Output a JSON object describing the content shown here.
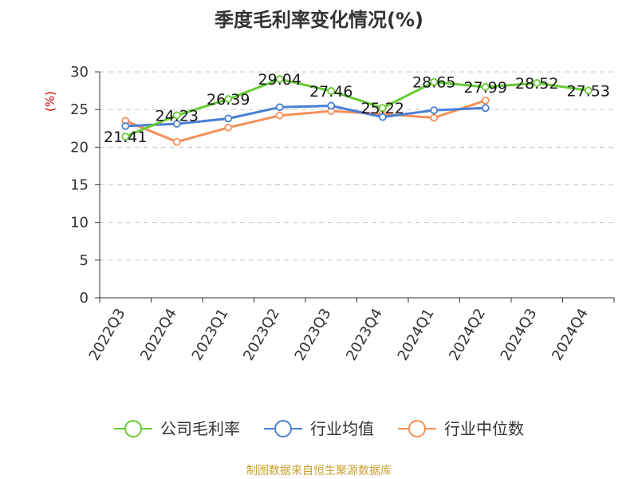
{
  "chart_data": {
    "type": "line",
    "title": "季度毛利率变化情况(%)",
    "xlabel": "",
    "ylabel": "(%)",
    "ylabel_color": "#cc0000",
    "ylim": [
      0,
      30
    ],
    "yticks": [
      0,
      5,
      10,
      15,
      20,
      25,
      30
    ],
    "grid": true,
    "legend_position": "bottom",
    "categories": [
      "2022Q3",
      "2022Q4",
      "2023Q1",
      "2023Q2",
      "2023Q3",
      "2023Q4",
      "2024Q1",
      "2024Q2",
      "2024Q3",
      "2024Q4"
    ],
    "series": [
      {
        "name": "公司毛利率",
        "color": "#66cc33",
        "values": [
          21.41,
          24.23,
          26.39,
          29.04,
          27.46,
          25.22,
          28.65,
          27.99,
          28.52,
          27.53
        ],
        "labels": [
          "21.41",
          "24.23",
          "26.39",
          "29.04",
          "27.46",
          "25.22",
          "28.65",
          "27.99",
          "28.52",
          "27.53"
        ]
      },
      {
        "name": "行业均值",
        "color": "#4a7fd4",
        "values": [
          22.8,
          23.1,
          23.8,
          25.3,
          25.5,
          24.0,
          24.9,
          25.2,
          null,
          null
        ]
      },
      {
        "name": "行业中位数",
        "color": "#f4905a",
        "values": [
          23.5,
          20.7,
          22.6,
          24.2,
          24.8,
          24.4,
          23.9,
          26.2,
          null,
          null
        ]
      }
    ],
    "source": "制图数据来自恒生聚源数据库",
    "source_color": "#c8a030"
  }
}
